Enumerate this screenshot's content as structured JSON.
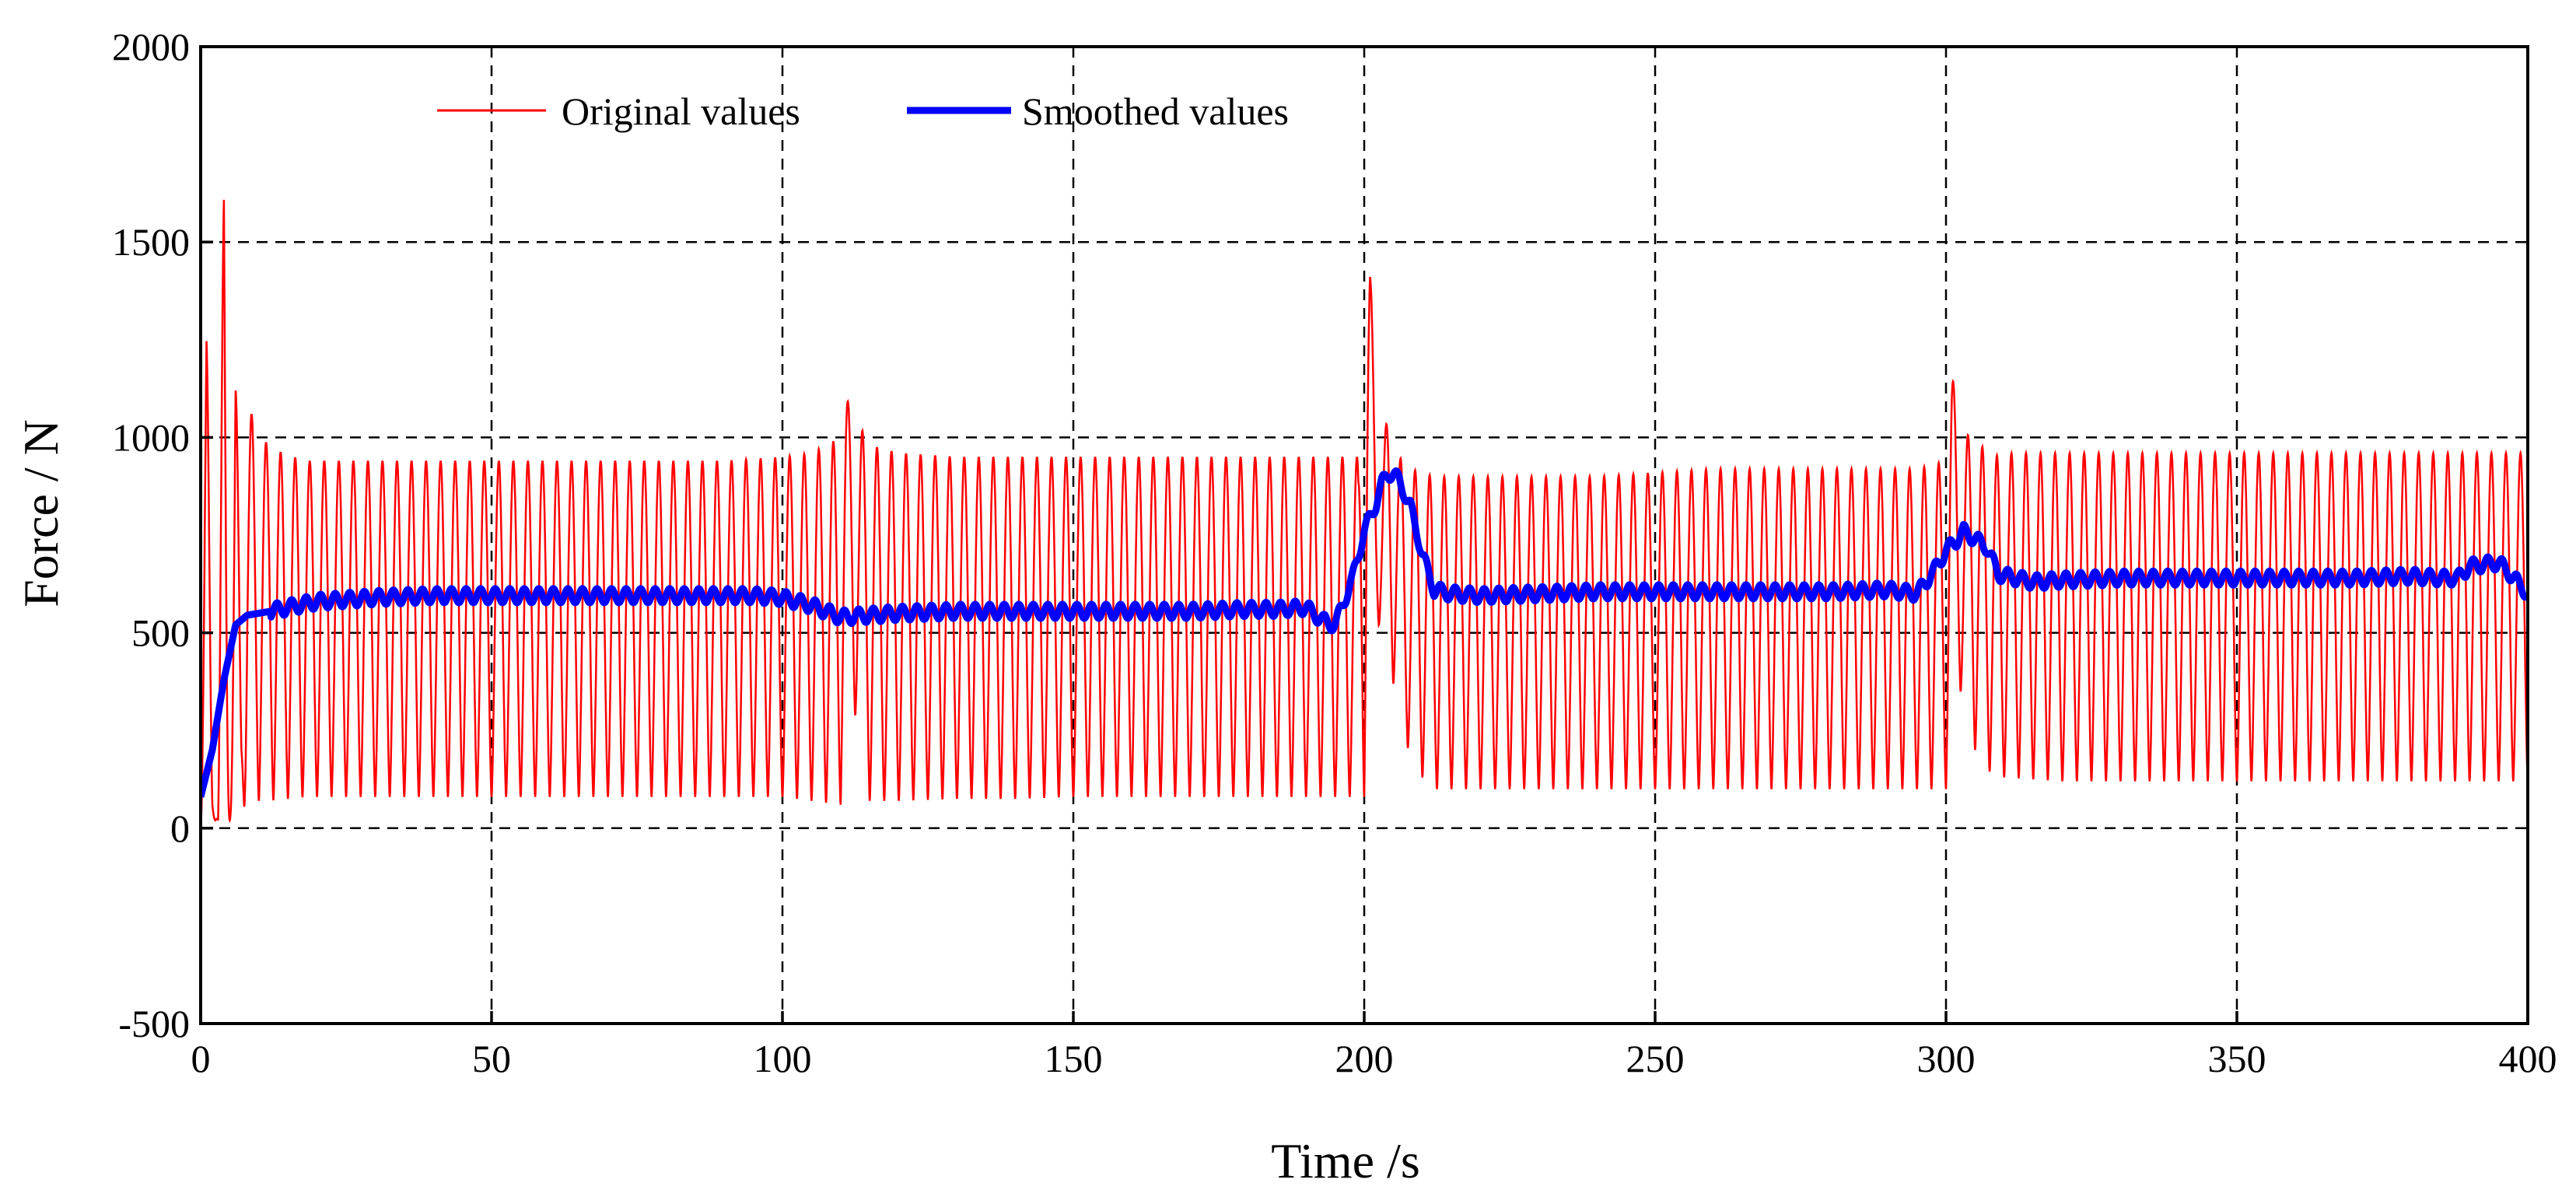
{
  "chart_data": {
    "type": "line",
    "title": "",
    "xlabel": "Time /s",
    "ylabel": "Force / N",
    "xlim": [
      0,
      400
    ],
    "ylim": [
      -500,
      2000
    ],
    "xticks": [
      0,
      50,
      100,
      150,
      200,
      250,
      300,
      350,
      400
    ],
    "yticks": [
      -500,
      0,
      500,
      1000,
      1500,
      2000
    ],
    "xtick_labels": [
      "0",
      "50",
      "100",
      "150",
      "200",
      "250",
      "300",
      "350",
      "400"
    ],
    "ytick_labels": [
      "-500",
      "0",
      "500",
      "1000",
      "1500",
      "2000"
    ],
    "grid": true,
    "legend_position": "top-left",
    "series": [
      {
        "name": "Original values",
        "color": "#ff0000",
        "style": "thin",
        "description": "periodic load oscillation, roughly 2.5 s period",
        "x": [
          0,
          1,
          2,
          3,
          4,
          5,
          6,
          7,
          8,
          9,
          10,
          12,
          14,
          16,
          18,
          20,
          25,
          30,
          35,
          40,
          50,
          60,
          70,
          80,
          90,
          100,
          105,
          110,
          111,
          115,
          120,
          130,
          140,
          150,
          160,
          170,
          180,
          190,
          195,
          199,
          200,
          201,
          202,
          203,
          205,
          206,
          208,
          210,
          212,
          215,
          220,
          230,
          240,
          250,
          260,
          270,
          280,
          290,
          295,
          300,
          301,
          302,
          303,
          305,
          306,
          308,
          310,
          320,
          330,
          340,
          350,
          360,
          370,
          380,
          390,
          395,
          400
        ],
        "peaks": [
          640,
          1350,
          120,
          20,
          1740,
          60,
          1210,
          400,
          1060,
          1060,
          1000,
          980,
          960,
          950,
          940,
          940,
          940,
          940,
          940,
          940,
          940,
          940,
          940,
          940,
          940,
          950,
          960,
          1000,
          1100,
          980,
          960,
          950,
          950,
          950,
          950,
          950,
          950,
          950,
          950,
          950,
          1540,
          1460,
          1000,
          960,
          1150,
          950,
          920,
          910,
          900,
          900,
          900,
          900,
          900,
          910,
          920,
          920,
          920,
          920,
          920,
          940,
          1160,
          1090,
          980,
          1050,
          980,
          950,
          960,
          960,
          960,
          960,
          960,
          960,
          960,
          960,
          960,
          960,
          960
        ],
        "troughs": [
          0,
          10,
          20,
          20,
          30,
          20,
          40,
          50,
          60,
          70,
          70,
          70,
          75,
          75,
          80,
          80,
          80,
          80,
          80,
          80,
          80,
          80,
          80,
          80,
          80,
          80,
          70,
          60,
          420,
          70,
          70,
          75,
          75,
          80,
          80,
          80,
          80,
          80,
          80,
          80,
          80,
          820,
          560,
          480,
          370,
          250,
          190,
          130,
          100,
          100,
          100,
          100,
          100,
          100,
          100,
          100,
          100,
          100,
          100,
          100,
          420,
          400,
          300,
          200,
          160,
          140,
          130,
          120,
          120,
          120,
          120,
          120,
          120,
          120,
          120,
          120,
          120
        ]
      },
      {
        "name": "Smoothed values",
        "color": "#0000ff",
        "style": "thick",
        "x": [
          0,
          2,
          4,
          6,
          8,
          10,
          12,
          15,
          20,
          30,
          40,
          50,
          60,
          70,
          80,
          90,
          95,
          100,
          105,
          110,
          115,
          120,
          130,
          140,
          150,
          160,
          170,
          180,
          185,
          190,
          193,
          195,
          198,
          200,
          202,
          203,
          204,
          205,
          206,
          208,
          210,
          212,
          215,
          220,
          230,
          240,
          250,
          260,
          270,
          280,
          290,
          295,
          298,
          300,
          302,
          303,
          305,
          307,
          309,
          312,
          315,
          320,
          330,
          340,
          350,
          360,
          370,
          380,
          385,
          388,
          390,
          395,
          397,
          400
        ],
        "values": [
          80,
          200,
          380,
          520,
          545,
          550,
          555,
          565,
          580,
          590,
          595,
          595,
          595,
          595,
          595,
          595,
          595,
          590,
          570,
          540,
          545,
          550,
          555,
          555,
          555,
          555,
          555,
          560,
          560,
          565,
          530,
          520,
          640,
          760,
          830,
          880,
          910,
          905,
          890,
          820,
          700,
          610,
          600,
          595,
          600,
          605,
          605,
          605,
          605,
          605,
          610,
          600,
          660,
          710,
          740,
          760,
          740,
          720,
          650,
          640,
          630,
          635,
          640,
          640,
          640,
          640,
          640,
          645,
          640,
          640,
          670,
          680,
          650,
          600
        ]
      }
    ]
  }
}
